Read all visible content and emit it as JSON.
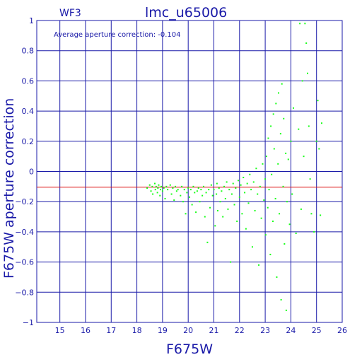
{
  "chart_data": {
    "type": "scatter",
    "title": "lmc_u65006",
    "subtitle": "WF3",
    "xlabel": "F675W",
    "ylabel": "F675W aperture correction",
    "annotation": "Average aperture correction: -0.104",
    "reference_line": -0.104,
    "xlim": [
      14.1,
      26.0
    ],
    "ylim": [
      -1,
      1
    ],
    "x_ticks": [
      15,
      16,
      17,
      18,
      19,
      20,
      21,
      22,
      23,
      24,
      25,
      26
    ],
    "y_ticks": [
      -1,
      -0.8,
      -0.6,
      -0.4,
      -0.2,
      0,
      0.2,
      0.4,
      0.6,
      0.8,
      1
    ],
    "x_tick_labels": [
      "15",
      "16",
      "17",
      "18",
      "19",
      "20",
      "21",
      "22",
      "23",
      "24",
      "25",
      "26"
    ],
    "y_tick_labels": [
      "−1",
      "−0.8",
      "−0.6",
      "−0.4",
      "−0.2",
      "0",
      "0.2",
      "0.4",
      "0.6",
      "0.8",
      "1"
    ],
    "grid": true,
    "colors": {
      "axes": "#1a1aa8",
      "points": "#19ff19",
      "reference_line": "#dd1111"
    },
    "points": [
      [
        18.4,
        -0.11
      ],
      [
        18.5,
        -0.09
      ],
      [
        18.55,
        -0.13
      ],
      [
        18.6,
        -0.1
      ],
      [
        18.62,
        -0.15
      ],
      [
        18.7,
        -0.08
      ],
      [
        18.72,
        -0.12
      ],
      [
        18.75,
        -0.1
      ],
      [
        18.8,
        -0.14
      ],
      [
        18.82,
        -0.11
      ],
      [
        18.85,
        -0.09
      ],
      [
        18.9,
        -0.16
      ],
      [
        18.92,
        -0.12
      ],
      [
        18.95,
        -0.1
      ],
      [
        19.0,
        -0.13
      ],
      [
        19.05,
        -0.11
      ],
      [
        19.1,
        -0.18
      ],
      [
        19.15,
        -0.1
      ],
      [
        19.2,
        -0.12
      ],
      [
        19.3,
        -0.09
      ],
      [
        19.35,
        -0.15
      ],
      [
        19.4,
        -0.11
      ],
      [
        19.45,
        -0.19
      ],
      [
        19.5,
        -0.1
      ],
      [
        19.55,
        -0.13
      ],
      [
        19.6,
        -0.12
      ],
      [
        19.7,
        -0.16
      ],
      [
        19.75,
        -0.1
      ],
      [
        19.8,
        -0.2
      ],
      [
        19.85,
        -0.12
      ],
      [
        19.9,
        -0.28
      ],
      [
        19.95,
        -0.14
      ],
      [
        20.0,
        -0.11
      ],
      [
        20.05,
        -0.17
      ],
      [
        20.1,
        -0.12
      ],
      [
        20.15,
        -0.22
      ],
      [
        20.2,
        -0.1
      ],
      [
        20.25,
        -0.14
      ],
      [
        20.3,
        -0.27
      ],
      [
        20.35,
        -0.13
      ],
      [
        20.4,
        -0.11
      ],
      [
        20.45,
        -0.2
      ],
      [
        20.5,
        -0.12
      ],
      [
        20.55,
        -0.16
      ],
      [
        20.6,
        -0.1
      ],
      [
        20.65,
        -0.3
      ],
      [
        20.7,
        -0.14
      ],
      [
        20.75,
        -0.47
      ],
      [
        20.8,
        -0.12
      ],
      [
        20.85,
        -0.24
      ],
      [
        20.9,
        -0.09
      ],
      [
        20.95,
        -0.16
      ],
      [
        21.0,
        -0.12
      ],
      [
        21.05,
        -0.36
      ],
      [
        21.1,
        -0.15
      ],
      [
        21.12,
        -0.08
      ],
      [
        21.15,
        -0.26
      ],
      [
        21.2,
        -0.11
      ],
      [
        21.25,
        -0.2
      ],
      [
        21.3,
        -0.13
      ],
      [
        21.35,
        -0.3
      ],
      [
        21.4,
        -0.1
      ],
      [
        21.45,
        -0.18
      ],
      [
        21.5,
        -0.07
      ],
      [
        21.55,
        -0.25
      ],
      [
        21.6,
        -0.12
      ],
      [
        21.65,
        -0.6
      ],
      [
        21.7,
        -0.15
      ],
      [
        21.75,
        -0.08
      ],
      [
        21.8,
        -0.22
      ],
      [
        21.85,
        -0.11
      ],
      [
        21.9,
        -0.33
      ],
      [
        21.95,
        -0.06
      ],
      [
        22.0,
        -0.17
      ],
      [
        22.05,
        -0.09
      ],
      [
        22.1,
        -0.28
      ],
      [
        22.15,
        -0.04
      ],
      [
        22.2,
        -0.14
      ],
      [
        22.25,
        -0.38
      ],
      [
        22.3,
        -0.08
      ],
      [
        22.35,
        -0.21
      ],
      [
        22.4,
        -0.02
      ],
      [
        22.45,
        -0.12
      ],
      [
        22.5,
        -0.5
      ],
      [
        22.55,
        -0.07
      ],
      [
        22.6,
        -0.26
      ],
      [
        22.65,
        0.02
      ],
      [
        22.7,
        -0.15
      ],
      [
        22.75,
        -0.62
      ],
      [
        22.8,
        -0.1
      ],
      [
        22.85,
        -0.31
      ],
      [
        22.9,
        0.05
      ],
      [
        22.95,
        -0.19
      ],
      [
        23.0,
        -0.05
      ],
      [
        23.02,
        -0.42
      ],
      [
        23.05,
        0.1
      ],
      [
        23.1,
        -0.24
      ],
      [
        23.12,
        0.22
      ],
      [
        23.15,
        -0.12
      ],
      [
        23.2,
        -0.55
      ],
      [
        23.22,
        0.3
      ],
      [
        23.25,
        -0.02
      ],
      [
        23.3,
        -0.33
      ],
      [
        23.32,
        0.38
      ],
      [
        23.35,
        0.15
      ],
      [
        23.4,
        -0.18
      ],
      [
        23.42,
        0.45
      ],
      [
        23.45,
        -0.7
      ],
      [
        23.5,
        0.05
      ],
      [
        23.52,
        0.52
      ],
      [
        23.55,
        -0.28
      ],
      [
        23.6,
        0.25
      ],
      [
        23.62,
        -0.85
      ],
      [
        23.65,
        0.58
      ],
      [
        23.7,
        -0.1
      ],
      [
        23.72,
        0.35
      ],
      [
        23.75,
        -0.48
      ],
      [
        23.8,
        0.12
      ],
      [
        23.82,
        -0.92
      ],
      [
        23.85,
        -0.2
      ],
      [
        23.9,
        0.08
      ],
      [
        23.95,
        -0.35
      ],
      [
        24.0,
        0.2
      ],
      [
        24.05,
        -0.15
      ],
      [
        24.1,
        0.42
      ],
      [
        24.2,
        -0.41
      ],
      [
        24.3,
        0.28
      ],
      [
        24.35,
        0.98
      ],
      [
        24.4,
        -0.25
      ],
      [
        24.45,
        0.6
      ],
      [
        24.5,
        0.1
      ],
      [
        24.55,
        0.98
      ],
      [
        24.6,
        0.85
      ],
      [
        24.65,
        0.65
      ],
      [
        24.7,
        0.3
      ],
      [
        24.75,
        -0.05
      ],
      [
        24.8,
        -0.28
      ],
      [
        24.9,
        -0.4
      ],
      [
        25.0,
        0.2
      ],
      [
        25.05,
        0.47
      ],
      [
        25.1,
        0.15
      ],
      [
        25.15,
        -0.29
      ],
      [
        25.2,
        0.32
      ]
    ]
  }
}
